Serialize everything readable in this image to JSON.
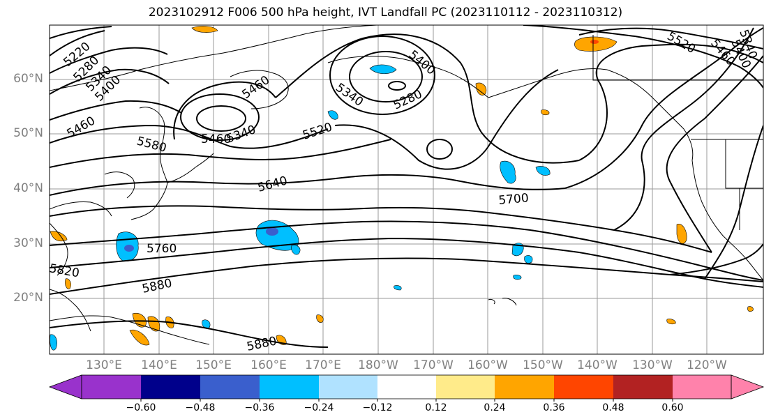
{
  "title": "2023102912 F006 500 hPa height, IVT Landfall PC (2023110112 - 2023110312)",
  "lat_labels": [
    "60°N",
    "50°N",
    "40°N",
    "30°N",
    "20°N"
  ],
  "lon_labels": [
    "130°E",
    "140°E",
    "150°E",
    "160°E",
    "170°E",
    "180°W",
    "170°W",
    "160°W",
    "150°W",
    "140°W",
    "130°W",
    "120°W"
  ],
  "contour_labels": [
    "5220",
    "5280",
    "5340",
    "5400",
    "5460",
    "5460",
    "5340",
    "5580",
    "5460",
    "5400",
    "5340",
    "5280",
    "5520",
    "5640",
    "5700",
    "5760",
    "5820",
    "5880",
    "5880",
    "5520",
    "5460",
    "5400",
    "5340"
  ],
  "colorbar": {
    "ticks": [
      "−0.60",
      "−0.48",
      "−0.36",
      "−0.24",
      "−0.12",
      "0.12",
      "0.24",
      "0.36",
      "0.48",
      "0.60"
    ],
    "colors": [
      "#9932cc",
      "#00008b",
      "#3a5fcd",
      "#00bfff",
      "#b0e2ff",
      "#ffffff",
      "#ffeb8a",
      "#ffa500",
      "#ff4500",
      "#b22222",
      "#ff82ab"
    ]
  }
}
